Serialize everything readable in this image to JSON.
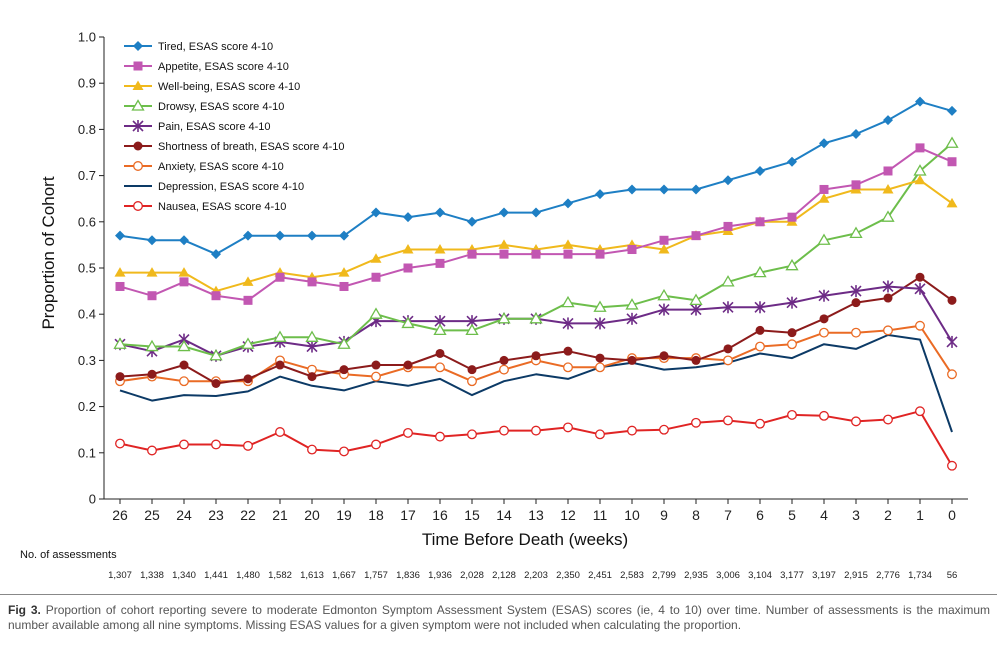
{
  "chart_data": {
    "type": "line",
    "title": "",
    "xlabel": "Time Before Death (weeks)",
    "ylabel": "Proportion of Cohort",
    "ylim": [
      0,
      1.0
    ],
    "yticks": [
      "0",
      "0.1",
      "0.2",
      "0.3",
      "0.4",
      "0.5",
      "0.6",
      "0.7",
      "0.8",
      "0.9",
      "1.0"
    ],
    "x": [
      26,
      25,
      24,
      23,
      22,
      21,
      20,
      19,
      18,
      17,
      16,
      15,
      14,
      13,
      12,
      11,
      10,
      9,
      8,
      7,
      6,
      5,
      4,
      3,
      2,
      1,
      0
    ],
    "legend_position": "top-left",
    "series": [
      {
        "name": "Tired, ESAS score 4-10",
        "color": "#1e7fc4",
        "marker": "diamond",
        "values": [
          0.57,
          0.56,
          0.56,
          0.53,
          0.57,
          0.57,
          0.57,
          0.57,
          0.62,
          0.61,
          0.62,
          0.6,
          0.62,
          0.62,
          0.64,
          0.66,
          0.67,
          0.67,
          0.67,
          0.69,
          0.71,
          0.73,
          0.77,
          0.79,
          0.82,
          0.86,
          0.84
        ]
      },
      {
        "name": "Appetite, ESAS score 4-10",
        "color": "#c257b2",
        "marker": "square",
        "values": [
          0.46,
          0.44,
          0.47,
          0.44,
          0.43,
          0.48,
          0.47,
          0.46,
          0.48,
          0.5,
          0.51,
          0.53,
          0.53,
          0.53,
          0.53,
          0.53,
          0.54,
          0.56,
          0.57,
          0.59,
          0.6,
          0.61,
          0.67,
          0.68,
          0.71,
          0.76,
          0.73
        ]
      },
      {
        "name": "Well-being, ESAS score 4-10",
        "color": "#f0b91c",
        "marker": "triangle",
        "values": [
          0.49,
          0.49,
          0.49,
          0.45,
          0.47,
          0.49,
          0.48,
          0.49,
          0.52,
          0.54,
          0.54,
          0.54,
          0.55,
          0.54,
          0.55,
          0.54,
          0.55,
          0.54,
          0.57,
          0.58,
          0.6,
          0.6,
          0.65,
          0.67,
          0.67,
          0.69,
          0.64
        ]
      },
      {
        "name": "Drowsy, ESAS score 4-10",
        "color": "#6dbe4b",
        "marker": "triangle-open",
        "values": [
          0.335,
          0.33,
          0.33,
          0.31,
          0.335,
          0.35,
          0.35,
          0.335,
          0.4,
          0.38,
          0.365,
          0.365,
          0.39,
          0.39,
          0.425,
          0.415,
          0.42,
          0.44,
          0.43,
          0.47,
          0.49,
          0.505,
          0.56,
          0.575,
          0.61,
          0.71,
          0.77
        ]
      },
      {
        "name": "Pain, ESAS score 4-10",
        "color": "#6d2b86",
        "marker": "star",
        "values": [
          0.335,
          0.32,
          0.345,
          0.31,
          0.33,
          0.34,
          0.33,
          0.34,
          0.385,
          0.385,
          0.385,
          0.385,
          0.39,
          0.39,
          0.38,
          0.38,
          0.39,
          0.41,
          0.41,
          0.415,
          0.415,
          0.425,
          0.44,
          0.45,
          0.46,
          0.455,
          0.34
        ]
      },
      {
        "name": "Shortness of breath, ESAS score 4-10",
        "color": "#8c1b1b",
        "marker": "circle",
        "values": [
          0.265,
          0.27,
          0.29,
          0.25,
          0.26,
          0.29,
          0.265,
          0.28,
          0.29,
          0.29,
          0.315,
          0.28,
          0.3,
          0.31,
          0.32,
          0.305,
          0.3,
          0.31,
          0.3,
          0.325,
          0.365,
          0.36,
          0.39,
          0.425,
          0.435,
          0.48,
          0.43
        ]
      },
      {
        "name": "Anxiety, ESAS score 4-10",
        "color": "#ea6b25",
        "marker": "circle-open",
        "values": [
          0.255,
          0.265,
          0.255,
          0.255,
          0.255,
          0.3,
          0.28,
          0.27,
          0.265,
          0.285,
          0.285,
          0.255,
          0.28,
          0.3,
          0.285,
          0.285,
          0.305,
          0.305,
          0.305,
          0.3,
          0.33,
          0.335,
          0.36,
          0.36,
          0.365,
          0.375,
          0.27
        ]
      },
      {
        "name": "Depression, ESAS score 4-10",
        "color": "#0c3a66",
        "marker": "none",
        "values": [
          0.235,
          0.213,
          0.225,
          0.223,
          0.233,
          0.265,
          0.245,
          0.235,
          0.255,
          0.245,
          0.26,
          0.225,
          0.255,
          0.27,
          0.26,
          0.285,
          0.295,
          0.28,
          0.285,
          0.295,
          0.315,
          0.305,
          0.335,
          0.325,
          0.355,
          0.345,
          0.145
        ]
      },
      {
        "name": "Nausea, ESAS score 4-10",
        "color": "#e02424",
        "marker": "circle-open",
        "values": [
          0.12,
          0.105,
          0.118,
          0.118,
          0.115,
          0.145,
          0.107,
          0.103,
          0.118,
          0.143,
          0.135,
          0.14,
          0.148,
          0.148,
          0.155,
          0.14,
          0.148,
          0.15,
          0.165,
          0.17,
          0.163,
          0.182,
          0.18,
          0.168,
          0.172,
          0.19,
          0.072
        ]
      }
    ],
    "assessments_label": "No. of assessments",
    "assessments": [
      "1,307",
      "1,338",
      "1,340",
      "1,441",
      "1,480",
      "1,582",
      "1,613",
      "1,667",
      "1,757",
      "1,836",
      "1,936",
      "2,028",
      "2,128",
      "2,203",
      "2,350",
      "2,451",
      "2,583",
      "2,799",
      "2,935",
      "3,006",
      "3,104",
      "3,177",
      "3,197",
      "2,915",
      "2,776",
      "1,734",
      "56"
    ]
  },
  "caption": {
    "fig_label": "Fig 3.",
    "text": "Proportion of cohort reporting severe to moderate Edmonton Symptom Assessment System (ESAS) scores (ie, 4 to 10) over time. Number of assessments is the maximum number available among all nine symptoms. Missing ESAS values for a given symptom were not included when calculating the proportion."
  }
}
